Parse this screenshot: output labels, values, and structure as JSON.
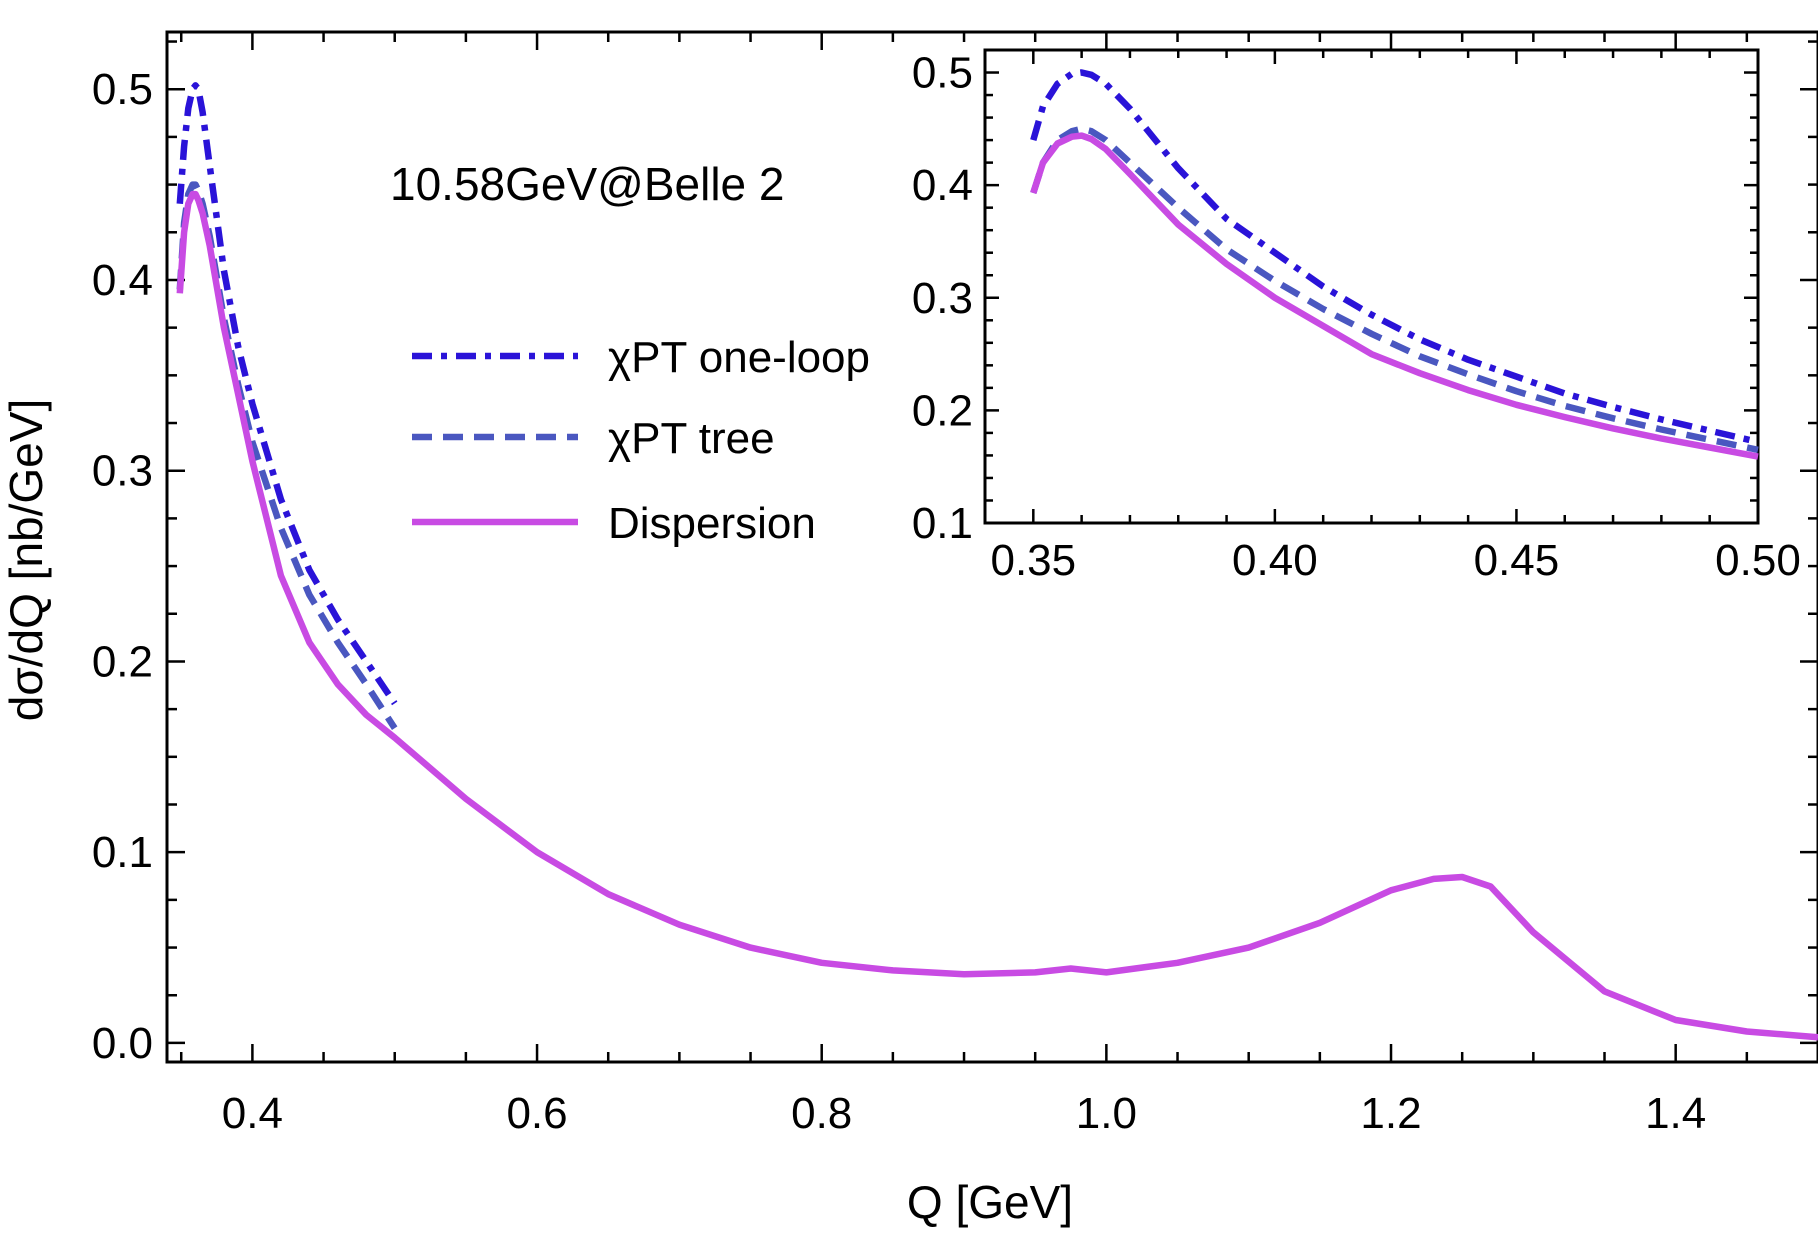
{
  "colors": {
    "one_loop": "#2a13d8",
    "tree": "#4a57c0",
    "dispersion": "#c84be3"
  },
  "chart_data": [
    {
      "type": "line",
      "title": "",
      "annotation": "10.58GeV@Belle 2",
      "xlabel": "Q [GeV]",
      "ylabel": "dσ/dQ [nb/GeV]",
      "xlim": [
        0.34,
        1.5
      ],
      "ylim": [
        -0.01,
        0.53
      ],
      "x_ticks": [
        "0.4",
        "0.6",
        "0.8",
        "1.0",
        "1.2",
        "1.4"
      ],
      "x_tick_values": [
        0.4,
        0.6,
        0.8,
        1.0,
        1.2,
        1.4
      ],
      "y_ticks": [
        "0.0",
        "0.1",
        "0.2",
        "0.3",
        "0.4",
        "0.5"
      ],
      "y_tick_values": [
        0.0,
        0.1,
        0.2,
        0.3,
        0.4,
        0.5
      ],
      "grid": false,
      "legend_position": "center-left",
      "series": [
        {
          "name": "χPT one-loop",
          "style": "dash-dot",
          "color": "#2a13d8",
          "x": [
            0.349,
            0.352,
            0.355,
            0.358,
            0.36,
            0.362,
            0.365,
            0.37,
            0.38,
            0.39,
            0.4,
            0.42,
            0.44,
            0.46,
            0.48,
            0.5
          ],
          "y": [
            0.44,
            0.47,
            0.49,
            0.5,
            0.502,
            0.5,
            0.488,
            0.46,
            0.405,
            0.365,
            0.335,
            0.285,
            0.248,
            0.222,
            0.2,
            0.178
          ]
        },
        {
          "name": "χPT tree",
          "style": "dashed",
          "color": "#4a57c0",
          "x": [
            0.349,
            0.352,
            0.355,
            0.358,
            0.36,
            0.362,
            0.365,
            0.37,
            0.38,
            0.39,
            0.4,
            0.42,
            0.44,
            0.46,
            0.48,
            0.5
          ],
          "y": [
            0.395,
            0.43,
            0.445,
            0.45,
            0.45,
            0.447,
            0.44,
            0.423,
            0.38,
            0.345,
            0.315,
            0.27,
            0.235,
            0.21,
            0.188,
            0.165
          ]
        },
        {
          "name": "Dispersion",
          "style": "solid",
          "color": "#c84be3",
          "x": [
            0.349,
            0.352,
            0.355,
            0.358,
            0.36,
            0.362,
            0.365,
            0.37,
            0.38,
            0.39,
            0.4,
            0.42,
            0.44,
            0.46,
            0.48,
            0.5,
            0.55,
            0.6,
            0.65,
            0.7,
            0.75,
            0.8,
            0.85,
            0.9,
            0.95,
            0.975,
            1.0,
            1.05,
            1.1,
            1.15,
            1.2,
            1.23,
            1.25,
            1.27,
            1.3,
            1.35,
            1.4,
            1.45,
            1.5
          ],
          "y": [
            0.393,
            0.425,
            0.44,
            0.445,
            0.445,
            0.442,
            0.435,
            0.418,
            0.375,
            0.34,
            0.305,
            0.245,
            0.21,
            0.188,
            0.172,
            0.16,
            0.128,
            0.1,
            0.078,
            0.062,
            0.05,
            0.042,
            0.038,
            0.036,
            0.037,
            0.039,
            0.037,
            0.042,
            0.05,
            0.063,
            0.08,
            0.086,
            0.087,
            0.082,
            0.058,
            0.027,
            0.012,
            0.006,
            0.003
          ]
        }
      ]
    },
    {
      "type": "line",
      "title": "",
      "xlabel": "",
      "ylabel": "",
      "xlim": [
        0.34,
        0.5
      ],
      "ylim": [
        0.1,
        0.52
      ],
      "x_ticks": [
        "0.35",
        "0.40",
        "0.45",
        "0.50"
      ],
      "x_tick_values": [
        0.35,
        0.4,
        0.45,
        0.5
      ],
      "y_ticks": [
        "0.1",
        "0.2",
        "0.3",
        "0.4",
        "0.5"
      ],
      "y_tick_values": [
        0.1,
        0.2,
        0.3,
        0.4,
        0.5
      ],
      "grid": false,
      "legend_position": "none",
      "series": [
        {
          "style": "dash-dot",
          "color": "#2a13d8",
          "x": [
            0.35,
            0.352,
            0.355,
            0.358,
            0.36,
            0.362,
            0.365,
            0.37,
            0.38,
            0.39,
            0.4,
            0.41,
            0.42,
            0.43,
            0.44,
            0.45,
            0.46,
            0.47,
            0.48,
            0.49,
            0.5
          ],
          "y": [
            0.44,
            0.47,
            0.49,
            0.499,
            0.5,
            0.498,
            0.49,
            0.468,
            0.415,
            0.37,
            0.34,
            0.31,
            0.285,
            0.263,
            0.245,
            0.23,
            0.215,
            0.203,
            0.192,
            0.182,
            0.172
          ]
        },
        {
          "style": "dashed",
          "color": "#4a57c0",
          "x": [
            0.35,
            0.352,
            0.355,
            0.358,
            0.36,
            0.362,
            0.365,
            0.37,
            0.38,
            0.39,
            0.4,
            0.41,
            0.42,
            0.43,
            0.44,
            0.45,
            0.46,
            0.47,
            0.48,
            0.49,
            0.5
          ],
          "y": [
            0.393,
            0.42,
            0.44,
            0.448,
            0.45,
            0.448,
            0.44,
            0.42,
            0.38,
            0.343,
            0.315,
            0.29,
            0.268,
            0.248,
            0.232,
            0.217,
            0.204,
            0.193,
            0.183,
            0.174,
            0.165
          ]
        },
        {
          "style": "solid",
          "color": "#c84be3",
          "x": [
            0.35,
            0.352,
            0.355,
            0.358,
            0.36,
            0.362,
            0.365,
            0.37,
            0.38,
            0.39,
            0.4,
            0.41,
            0.42,
            0.43,
            0.44,
            0.45,
            0.46,
            0.47,
            0.48,
            0.49,
            0.5
          ],
          "y": [
            0.393,
            0.42,
            0.437,
            0.443,
            0.444,
            0.441,
            0.432,
            0.41,
            0.365,
            0.33,
            0.3,
            0.275,
            0.25,
            0.233,
            0.218,
            0.205,
            0.194,
            0.184,
            0.175,
            0.167,
            0.159
          ]
        }
      ]
    }
  ]
}
